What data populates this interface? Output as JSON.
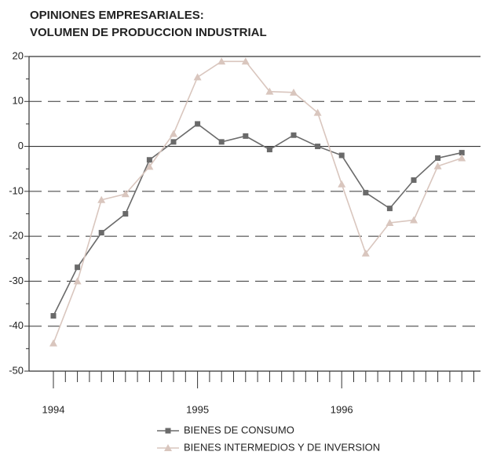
{
  "chart_data": {
    "type": "line",
    "title": [
      "OPINIONES EMPRESARIALES:",
      "VOLUMEN DE PRODUCCION INDUSTRIAL"
    ],
    "categories": [
      "1994",
      null,
      null,
      null,
      null,
      null,
      "1995",
      null,
      null,
      null,
      null,
      null,
      "1996",
      null,
      null,
      null,
      null,
      null
    ],
    "series": [
      {
        "name": "BIENES DE CONSUMO",
        "color": "#6a6a6a",
        "marker": "square",
        "values": [
          -37.7,
          -26.9,
          -19.2,
          -15,
          -3,
          1,
          5,
          1,
          2.3,
          -0.7,
          2.5,
          0,
          -2,
          -10.3,
          -13.8,
          -7.5,
          -2.6,
          -1.4
        ]
      },
      {
        "name": "BIENES INTERMEDIOS Y DE INVERSION",
        "color": "#d9c6be",
        "marker": "triangle",
        "values": [
          -43.8,
          -30,
          -11.9,
          -10.6,
          -4.5,
          2.8,
          15.4,
          18.9,
          18.9,
          12.2,
          12,
          7.5,
          -8.4,
          -23.8,
          -17,
          -16.4,
          -4.4,
          -2.6
        ]
      }
    ],
    "ylim": [
      -50,
      20
    ],
    "yticks": [
      -50,
      -40,
      -30,
      -20,
      -10,
      0,
      10,
      20
    ],
    "grid": true
  }
}
